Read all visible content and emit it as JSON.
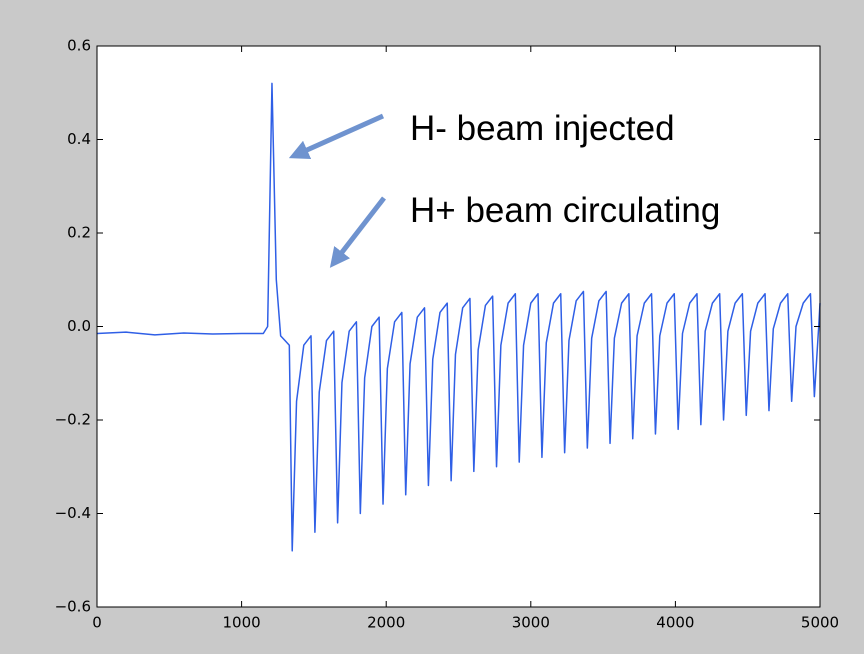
{
  "chart_data": {
    "type": "line",
    "annotations": [
      "H- beam injected",
      "H+ beam circulating"
    ],
    "color": "#2f5fe6",
    "xlim": [
      0,
      5000
    ],
    "ylim": [
      -0.6,
      0.6
    ],
    "xticks": [
      0,
      1000,
      2000,
      3000,
      4000,
      5000
    ],
    "yticks": [
      {
        "value": -0.6,
        "label": "−0.6"
      },
      {
        "value": -0.4,
        "label": "−0.4"
      },
      {
        "value": -0.2,
        "label": "−0.2"
      },
      {
        "value": 0,
        "label": "0.0"
      },
      0.2,
      0.4,
      0.6
    ],
    "x": [
      0,
      200,
      400,
      600,
      800,
      1000,
      1150,
      1180,
      1210,
      1240,
      1270,
      1300,
      1330,
      1350,
      1380,
      1430,
      1480,
      1507,
      1537,
      1587,
      1637,
      1664,
      1694,
      1744,
      1794,
      1821,
      1851,
      1901,
      1951,
      1978,
      2008,
      2058,
      2108,
      2135,
      2165,
      2215,
      2265,
      2292,
      2322,
      2372,
      2422,
      2449,
      2479,
      2529,
      2579,
      2606,
      2636,
      2686,
      2736,
      2763,
      2793,
      2843,
      2893,
      2920,
      2950,
      3000,
      3050,
      3077,
      3107,
      3157,
      3207,
      3234,
      3264,
      3314,
      3364,
      3391,
      3421,
      3471,
      3521,
      3548,
      3578,
      3628,
      3678,
      3705,
      3735,
      3785,
      3835,
      3862,
      3892,
      3942,
      3992,
      4019,
      4049,
      4099,
      4149,
      4176,
      4206,
      4256,
      4306,
      4333,
      4363,
      4413,
      4463,
      4490,
      4520,
      4570,
      4620,
      4647,
      4677,
      4727,
      4777,
      4804,
      4834,
      4884,
      4934,
      4961,
      4991,
      5000
    ],
    "values": [
      -0.015,
      -0.012,
      -0.018,
      -0.014,
      -0.016,
      -0.015,
      -0.015,
      0.0,
      0.52,
      0.1,
      -0.02,
      -0.03,
      -0.04,
      -0.48,
      -0.16,
      -0.04,
      -0.02,
      -0.44,
      -0.14,
      -0.03,
      -0.01,
      -0.42,
      -0.12,
      -0.01,
      0.01,
      -0.4,
      -0.11,
      0.0,
      0.02,
      -0.38,
      -0.09,
      0.01,
      0.03,
      -0.36,
      -0.08,
      0.02,
      0.04,
      -0.34,
      -0.07,
      0.03,
      0.05,
      -0.33,
      -0.06,
      0.04,
      0.06,
      -0.31,
      -0.05,
      0.045,
      0.065,
      -0.3,
      -0.04,
      0.05,
      0.07,
      -0.29,
      -0.04,
      0.05,
      0.07,
      -0.28,
      -0.035,
      0.05,
      0.07,
      -0.27,
      -0.03,
      0.055,
      0.075,
      -0.26,
      -0.025,
      0.055,
      0.075,
      -0.25,
      -0.025,
      0.05,
      0.07,
      -0.24,
      -0.02,
      0.05,
      0.07,
      -0.23,
      -0.02,
      0.05,
      0.07,
      -0.22,
      -0.015,
      0.05,
      0.07,
      -0.21,
      -0.01,
      0.05,
      0.07,
      -0.2,
      -0.01,
      0.05,
      0.07,
      -0.19,
      -0.01,
      0.05,
      0.07,
      -0.18,
      -0.005,
      0.05,
      0.07,
      -0.16,
      0.0,
      0.05,
      0.07,
      -0.15,
      0.0,
      0.05
    ]
  }
}
